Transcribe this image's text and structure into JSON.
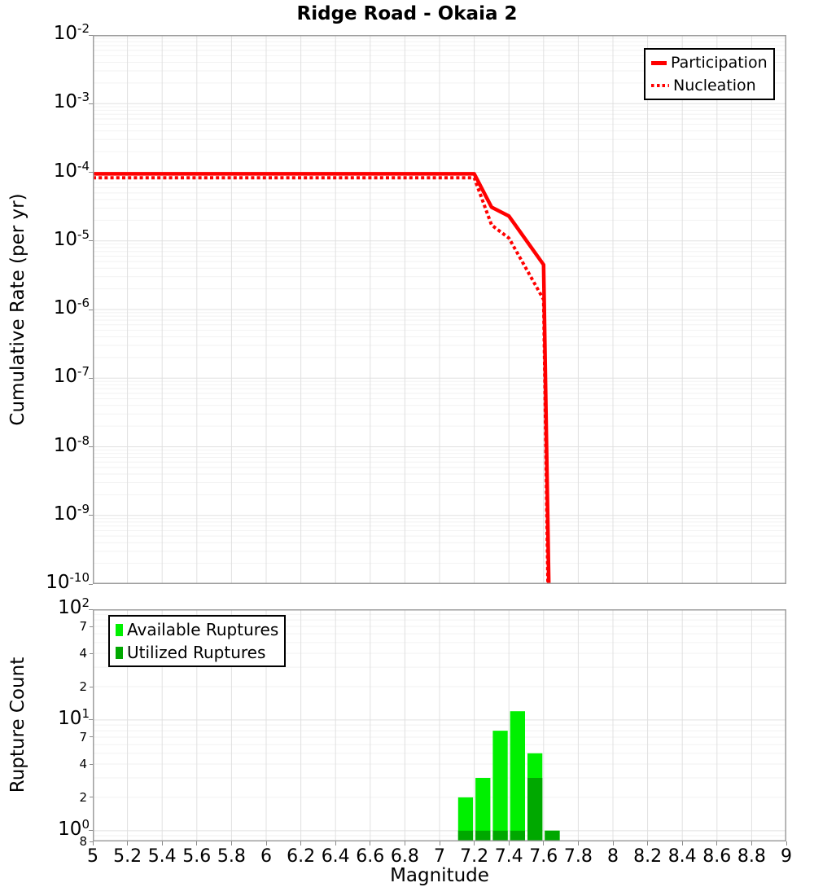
{
  "title": "Ridge Road - Okaia 2",
  "chart_data": [
    {
      "type": "line",
      "panel": "top",
      "title": "Ridge Road - Okaia 2",
      "ylabel": "Cumulative Rate (per yr)",
      "yscale": "log",
      "ylim": [
        1e-10,
        0.01
      ],
      "xlim": [
        5,
        9
      ],
      "grid": true,
      "legend_position": "top-right",
      "series": [
        {
          "name": "Participation",
          "color": "#ff0000",
          "line_style": "solid",
          "line_width": 4.5,
          "points": [
            [
              5.0,
              9.5e-05
            ],
            [
              7.2,
              9.5e-05
            ],
            [
              7.3,
              3.1e-05
            ],
            [
              7.4,
              2.3e-05
            ],
            [
              7.6,
              4.5e-06
            ],
            [
              7.63,
              1e-10
            ]
          ]
        },
        {
          "name": "Nucleation",
          "color": "#ff0000",
          "line_style": "dotted",
          "line_width": 4,
          "points": [
            [
              5.0,
              8.3e-05
            ],
            [
              7.2,
              8.3e-05
            ],
            [
              7.3,
              1.7e-05
            ],
            [
              7.4,
              1.1e-05
            ],
            [
              7.6,
              1.4e-06
            ],
            [
              7.625,
              1e-10
            ]
          ]
        }
      ]
    },
    {
      "type": "bar",
      "panel": "bottom",
      "ylabel": "Rupture Count",
      "xlabel": "Magnitude",
      "yscale": "log",
      "ylim": [
        0.8,
        100
      ],
      "xlim": [
        5,
        9
      ],
      "bin_width": 0.1,
      "legend_position": "top-left",
      "series": [
        {
          "name": "Available Ruptures",
          "color": "#00f000",
          "bins": [
            {
              "x0": 7.1,
              "count": 2
            },
            {
              "x0": 7.2,
              "count": 3
            },
            {
              "x0": 7.3,
              "count": 8
            },
            {
              "x0": 7.4,
              "count": 12
            },
            {
              "x0": 7.5,
              "count": 5
            },
            {
              "x0": 7.6,
              "count": 1
            }
          ]
        },
        {
          "name": "Utilized Ruptures",
          "color": "#00a800",
          "bins": [
            {
              "x0": 7.1,
              "count": 1
            },
            {
              "x0": 7.2,
              "count": 1
            },
            {
              "x0": 7.3,
              "count": 1
            },
            {
              "x0": 7.4,
              "count": 1
            },
            {
              "x0": 7.5,
              "count": 3
            },
            {
              "x0": 7.6,
              "count": 1
            }
          ]
        }
      ]
    }
  ],
  "axes": {
    "x_tick_labels": [
      "5",
      "5.2",
      "5.4",
      "5.6",
      "5.8",
      "6",
      "6.2",
      "6.4",
      "6.6",
      "6.8",
      "7",
      "7.2",
      "7.4",
      "7.6",
      "7.8",
      "8",
      "8.2",
      "8.4",
      "8.6",
      "8.8",
      "9"
    ],
    "top_y_exponents": [
      -2,
      -3,
      -4,
      -5,
      -6,
      -7,
      -8,
      -9,
      -10
    ],
    "bottom_y_major_exponents": [
      2,
      1,
      0
    ],
    "bottom_y_minor_ticks": [
      {
        "label": "7",
        "value": 70
      },
      {
        "label": "4",
        "value": 40
      },
      {
        "label": "2",
        "value": 20
      },
      {
        "label": "7",
        "value": 7
      },
      {
        "label": "4",
        "value": 4
      },
      {
        "label": "2",
        "value": 2
      },
      {
        "label": "8",
        "value": 0.8
      }
    ]
  },
  "colors": {
    "line_red": "#ff0000",
    "available_green": "#00f000",
    "utilized_green": "#00a800",
    "grid_major": "#e0e0e0",
    "grid_minor": "#f2f2f2",
    "plot_border": "#9e9e9e",
    "tick_mark": "#8a8a8a",
    "text": "#000000"
  }
}
